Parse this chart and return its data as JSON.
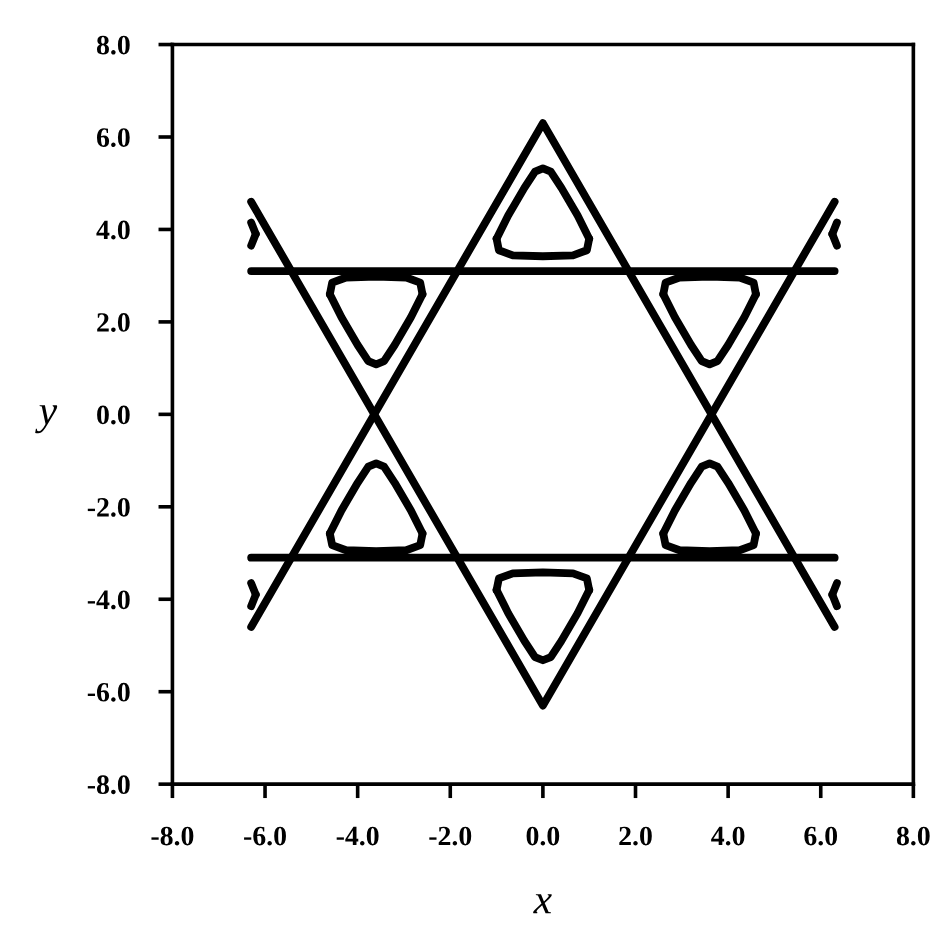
{
  "chart_data": {
    "type": "line",
    "xlabel": "x",
    "ylabel": "y",
    "xlim": [
      -8,
      8
    ],
    "ylim": [
      -8,
      8
    ],
    "xticks": [
      {
        "value": -8,
        "label": "-8.0"
      },
      {
        "value": -6,
        "label": "-6.0"
      },
      {
        "value": -4,
        "label": "-4.0"
      },
      {
        "value": -2,
        "label": "-2.0"
      },
      {
        "value": 0,
        "label": "0.0"
      },
      {
        "value": 2,
        "label": "2.0"
      },
      {
        "value": 4,
        "label": "4.0"
      },
      {
        "value": 6,
        "label": "6.0"
      },
      {
        "value": 8,
        "label": "8.0"
      }
    ],
    "yticks": [
      {
        "value": -8,
        "label": "-8.0"
      },
      {
        "value": -6,
        "label": "-6.0"
      },
      {
        "value": -4,
        "label": "-4.0"
      },
      {
        "value": -2,
        "label": "-2.0"
      },
      {
        "value": 0,
        "label": "0.0"
      },
      {
        "value": 2,
        "label": "2.0"
      },
      {
        "value": 4,
        "label": "4.0"
      },
      {
        "value": 6,
        "label": "6.0"
      },
      {
        "value": 8,
        "label": "8.0"
      }
    ],
    "grid": false,
    "legend": false,
    "series": [
      {
        "color": "#000000",
        "x": [
          -6.3,
          0,
          6.3
        ],
        "values": [
          -4.6,
          6.3,
          -4.6
        ]
      },
      {
        "color": "#000000",
        "x": [
          -6.3,
          0,
          6.3
        ],
        "values": [
          4.6,
          -6.3,
          4.6
        ]
      },
      {
        "color": "#000000",
        "x": [
          -6.3,
          6.3
        ],
        "values": [
          3.1,
          3.1
        ]
      },
      {
        "color": "#000000",
        "x": [
          -6.3,
          6.3
        ],
        "values": [
          -3.1,
          -3.1
        ]
      },
      {
        "color": "#000000",
        "x": [
          -1.0,
          -0.75,
          -0.4,
          -0.17,
          0,
          0.17,
          0.4,
          0.75,
          1.0
        ],
        "values": [
          3.8,
          4.3,
          4.9,
          5.25,
          5.32,
          5.25,
          4.9,
          4.3,
          3.8
        ]
      },
      {
        "color": "#000000",
        "x": [
          -1.0,
          -0.95,
          -0.65,
          0,
          0.65,
          0.95,
          1.0
        ],
        "values": [
          3.8,
          3.55,
          3.44,
          3.42,
          3.44,
          3.55,
          3.8
        ]
      },
      {
        "color": "#000000",
        "x": [
          -1.0,
          -0.75,
          -0.4,
          -0.17,
          0,
          0.17,
          0.4,
          0.75,
          1.0
        ],
        "values": [
          -3.8,
          -4.3,
          -4.9,
          -5.25,
          -5.32,
          -5.25,
          -4.9,
          -4.3,
          -3.8
        ]
      },
      {
        "color": "#000000",
        "x": [
          -1.0,
          -0.95,
          -0.65,
          0,
          0.65,
          0.95,
          1.0
        ],
        "values": [
          -3.8,
          -3.55,
          -3.44,
          -3.42,
          -3.44,
          -3.55,
          -3.8
        ]
      },
      {
        "color": "#000000",
        "x": [
          -4.6,
          -4.35,
          -4.0,
          -3.77,
          -3.6,
          -3.43,
          -3.2,
          -2.85,
          -2.6
        ],
        "values": [
          -2.58,
          -2.08,
          -1.48,
          -1.13,
          -1.06,
          -1.13,
          -1.48,
          -2.08,
          -2.58
        ]
      },
      {
        "color": "#000000",
        "x": [
          -4.6,
          -4.55,
          -4.25,
          -3.6,
          -2.95,
          -2.65,
          -2.6
        ],
        "values": [
          -2.58,
          -2.83,
          -2.94,
          -2.96,
          -2.94,
          -2.83,
          -2.58
        ]
      },
      {
        "color": "#000000",
        "x": [
          2.6,
          2.85,
          3.2,
          3.43,
          3.6,
          3.77,
          4.0,
          4.35,
          4.6
        ],
        "values": [
          -2.58,
          -2.08,
          -1.48,
          -1.13,
          -1.06,
          -1.13,
          -1.48,
          -2.08,
          -2.58
        ]
      },
      {
        "color": "#000000",
        "x": [
          2.6,
          2.65,
          2.95,
          3.6,
          4.25,
          4.55,
          4.6
        ],
        "values": [
          -2.58,
          -2.83,
          -2.94,
          -2.96,
          -2.94,
          -2.83,
          -2.58
        ]
      },
      {
        "color": "#000000",
        "x": [
          -4.6,
          -4.35,
          -4.0,
          -3.77,
          -3.6,
          -3.43,
          -3.2,
          -2.85,
          -2.6
        ],
        "values": [
          2.6,
          2.1,
          1.5,
          1.15,
          1.08,
          1.15,
          1.5,
          2.1,
          2.6
        ]
      },
      {
        "color": "#000000",
        "x": [
          -4.6,
          -4.55,
          -4.25,
          -3.6,
          -2.95,
          -2.65,
          -2.6
        ],
        "values": [
          2.6,
          2.85,
          2.96,
          2.98,
          2.96,
          2.85,
          2.6
        ]
      },
      {
        "color": "#000000",
        "x": [
          2.6,
          2.85,
          3.2,
          3.43,
          3.6,
          3.77,
          4.0,
          4.35,
          4.6
        ],
        "values": [
          2.6,
          2.1,
          1.5,
          1.15,
          1.08,
          1.15,
          1.5,
          2.1,
          2.6
        ]
      },
      {
        "color": "#000000",
        "x": [
          2.6,
          2.65,
          2.95,
          3.6,
          4.25,
          4.55,
          4.6
        ],
        "values": [
          2.6,
          2.85,
          2.96,
          2.98,
          2.96,
          2.85,
          2.6
        ]
      },
      {
        "color": "#000000",
        "x": [
          -6.3,
          -6.2
        ],
        "values": [
          4.15,
          3.9
        ]
      },
      {
        "color": "#000000",
        "x": [
          -6.3,
          -6.2
        ],
        "values": [
          3.65,
          3.9
        ]
      },
      {
        "color": "#000000",
        "x": [
          6.25,
          6.35
        ],
        "values": [
          3.9,
          4.15
        ]
      },
      {
        "color": "#000000",
        "x": [
          6.25,
          6.35
        ],
        "values": [
          3.9,
          3.65
        ]
      },
      {
        "color": "#000000",
        "x": [
          -6.3,
          -6.2
        ],
        "values": [
          -3.65,
          -3.9
        ]
      },
      {
        "color": "#000000",
        "x": [
          -6.3,
          -6.2
        ],
        "values": [
          -4.15,
          -3.9
        ]
      },
      {
        "color": "#000000",
        "x": [
          6.25,
          6.35
        ],
        "values": [
          -3.9,
          -3.65
        ]
      },
      {
        "color": "#000000",
        "x": [
          6.25,
          6.35
        ],
        "values": [
          -3.9,
          -4.15
        ]
      }
    ]
  }
}
